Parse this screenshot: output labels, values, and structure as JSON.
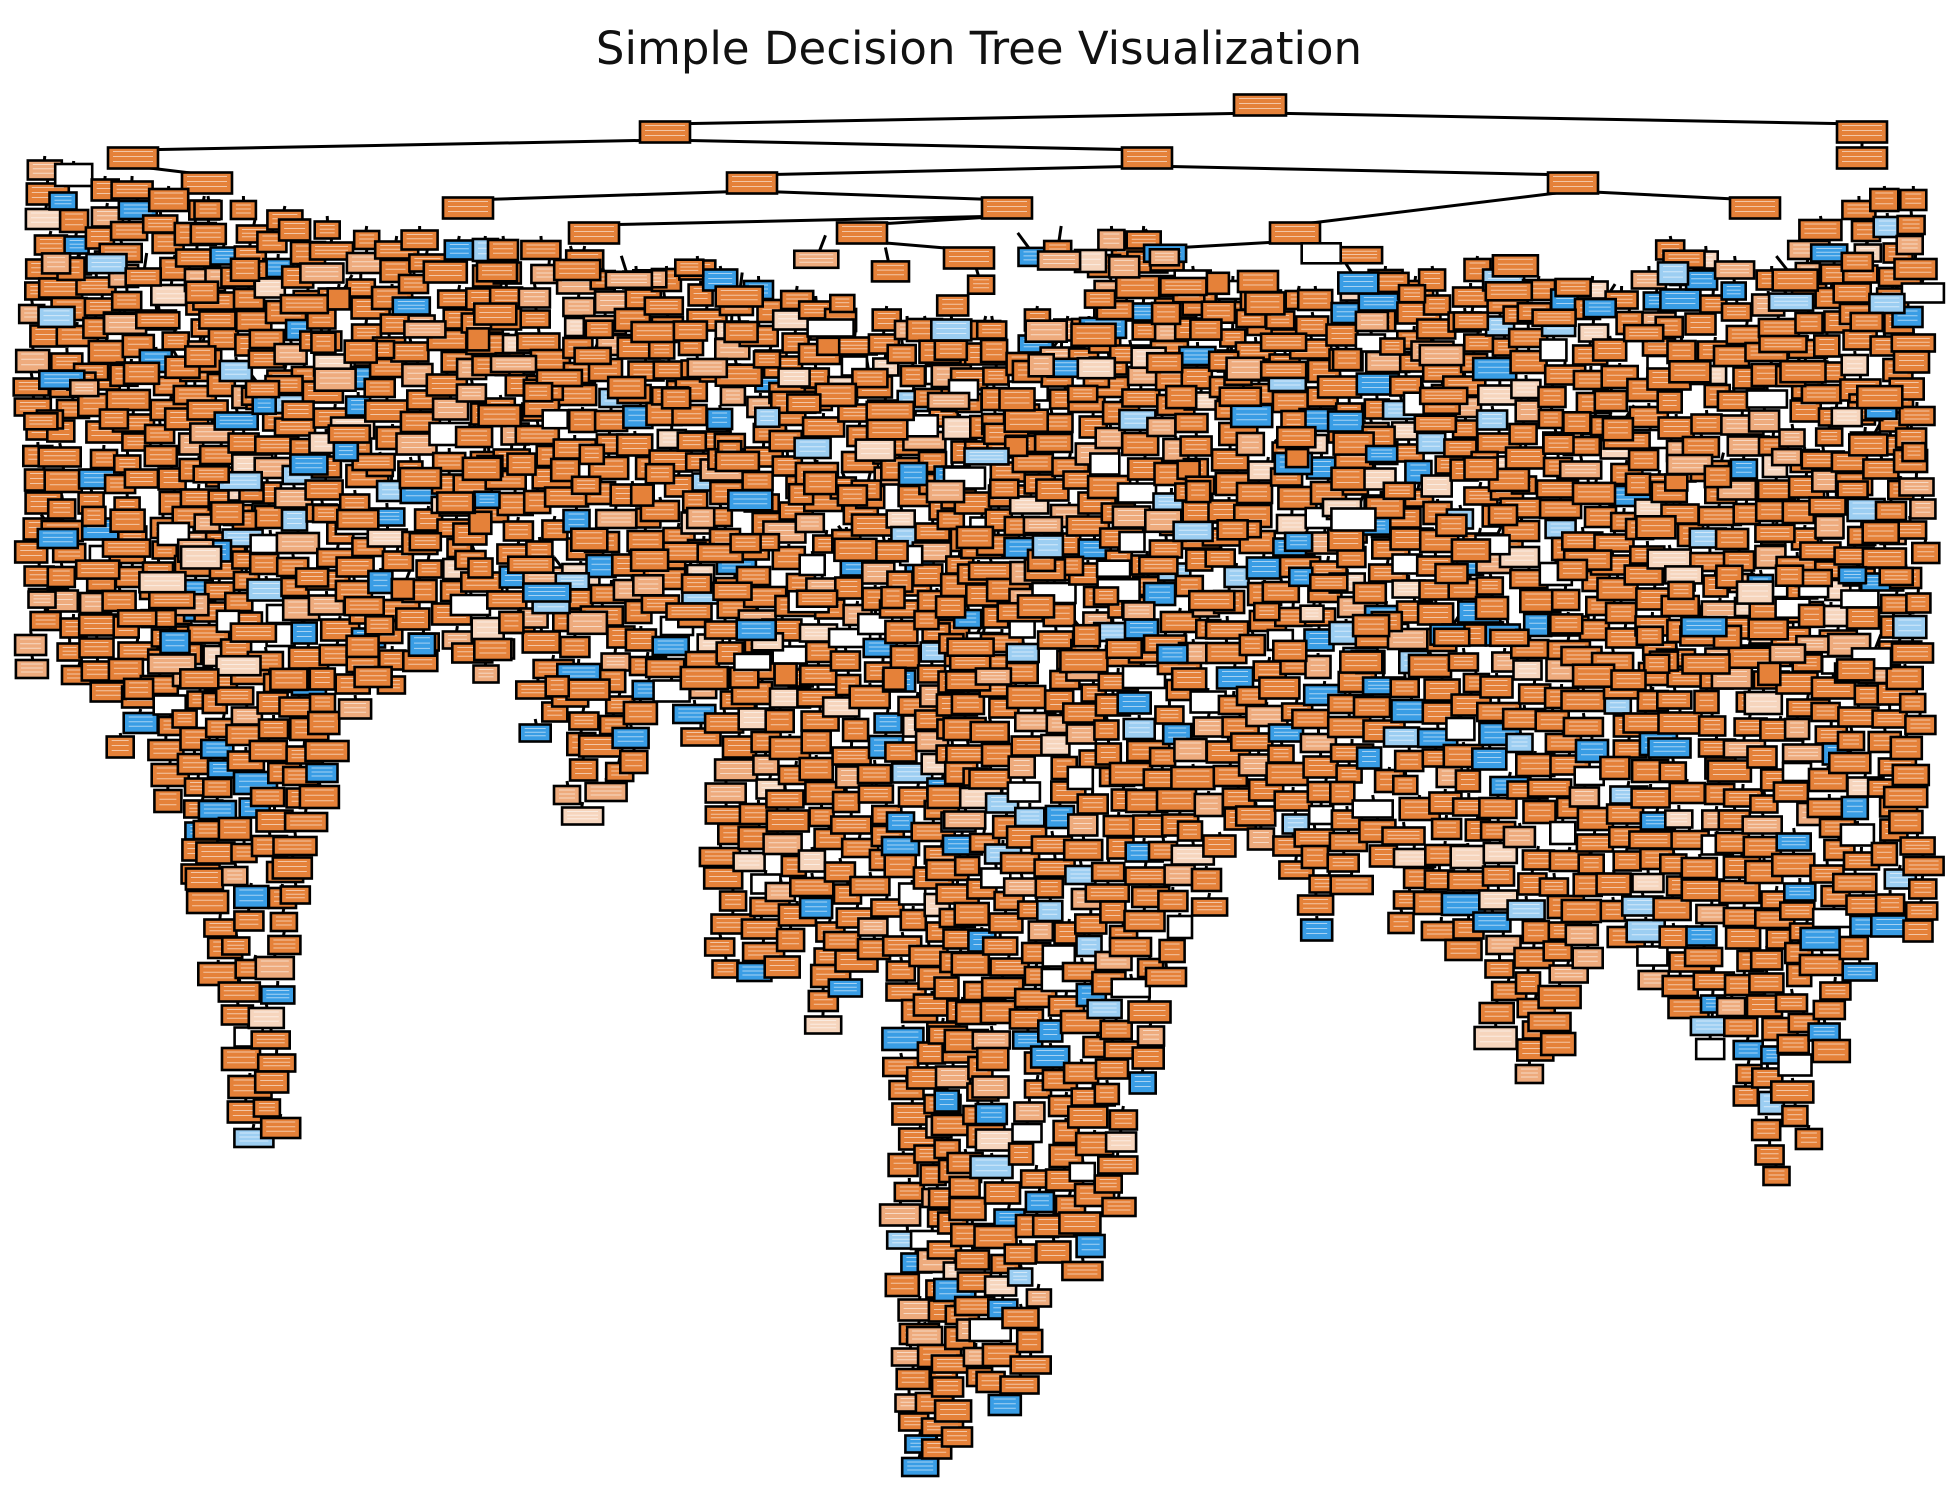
{
  "title": "Simple Decision Tree Visualization",
  "colors": {
    "class_0": "#e58139",
    "class_0_light": "#eeab7d",
    "class_0_pale": "#f6d5bd",
    "class_1": "#399de5",
    "class_1_light": "#9ccef2",
    "impure": "#ffffff",
    "edge": "#000000"
  },
  "tree": {
    "kind": "decision-tree",
    "node_fields": [
      "gini",
      "samples",
      "value",
      "class"
    ],
    "classes_by_color": [
      "orange",
      "blue"
    ]
  }
}
